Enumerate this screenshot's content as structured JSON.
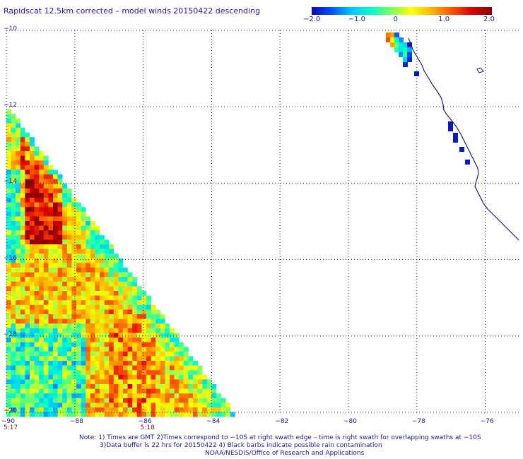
{
  "title": "Rapidscat 12.5km corrected – model winds 20150422 descending",
  "colorbar": {
    "ticks": [
      "−2.0",
      "−1.0",
      "0",
      "1.0",
      "2.0"
    ],
    "tick_values": [
      -2.0,
      -1.0,
      0,
      1.0,
      2.0
    ],
    "colors": [
      "#0a0ab4",
      "#0050ff",
      "#00c8ff",
      "#00ffc8",
      "#80ff60",
      "#ffff00",
      "#ffb400",
      "#ff5000",
      "#dc0000",
      "#8b0000"
    ]
  },
  "map": {
    "lon_range": [
      -90,
      -75
    ],
    "lat_range": [
      -20,
      -10
    ],
    "x_ticks": [
      "−90",
      "−88",
      "−86",
      "−84",
      "−82",
      "−80",
      "−78",
      "−76"
    ],
    "x_tick_values": [
      -90,
      -88,
      -86,
      -84,
      -82,
      -80,
      -78,
      -76
    ],
    "y_ticks": [
      "−10",
      "−12",
      "−14",
      "−16",
      "−18",
      "−20"
    ],
    "y_tick_values": [
      -10,
      -12,
      -14,
      -16,
      -18,
      -20
    ],
    "grid": "dotted",
    "swath_time_labels": [
      {
        "text": "5:17",
        "lon": -90
      },
      {
        "text": "5:18",
        "lon": -86
      }
    ],
    "coastline_color": "#1a1a80"
  },
  "notes": [
    "Note: 1) Times are GMT 2)Times correspond to −10S at right swath edge – time is right swath for overlapping swaths at −10S",
    "3)Data buffer is 22 hrs for 20150422 4) Black barbs indicate possible rain contamination",
    "NOAA/NESDIS/Office of Research and Applications"
  ]
}
